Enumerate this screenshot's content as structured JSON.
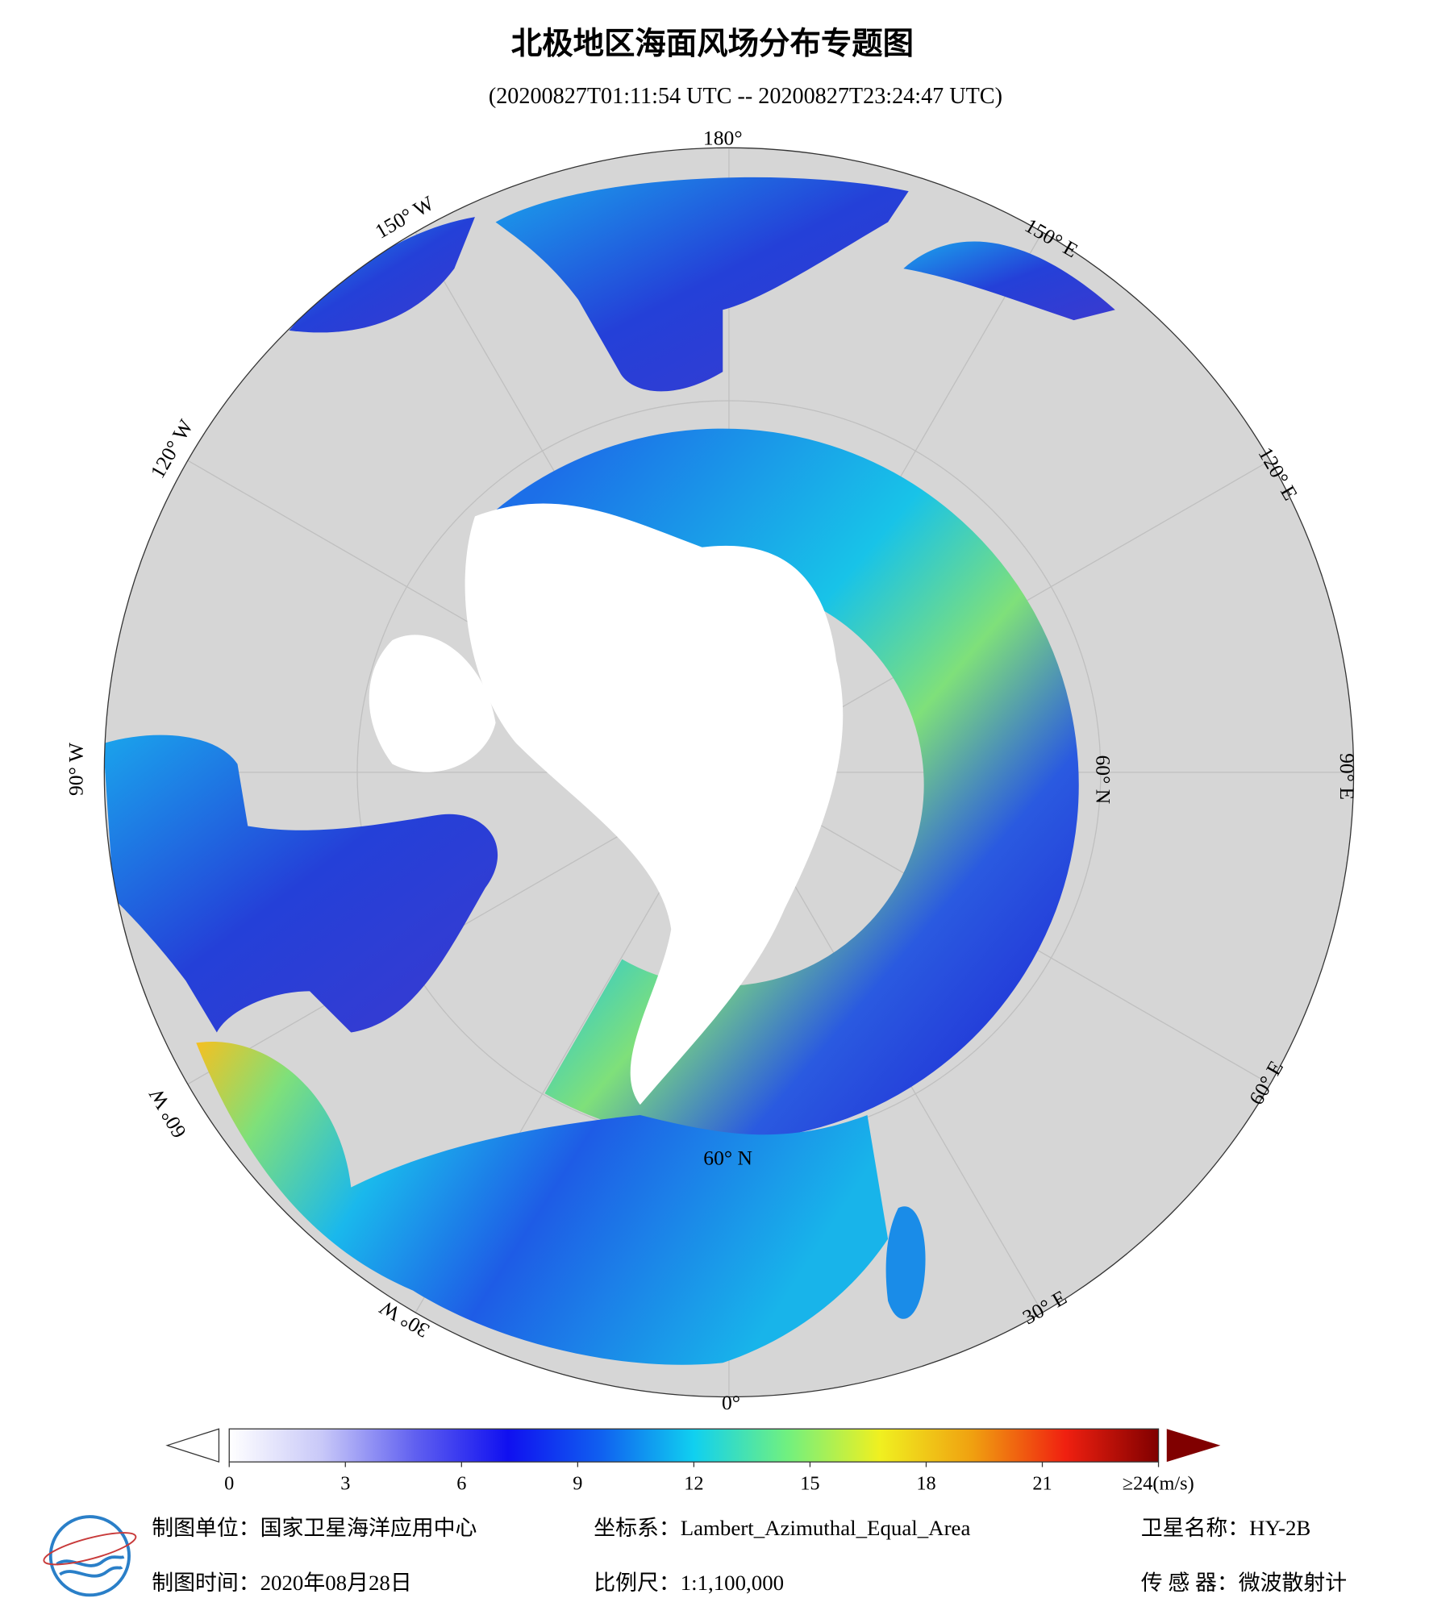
{
  "title": "北极地区海面风场分布专题图",
  "subtitle": "(20200827T01:11:54 UTC -- 20200827T23:24:47 UTC)",
  "graticule": {
    "meridians": [
      "180°",
      "150° E",
      "120° E",
      "90° E",
      "60° E",
      "30° E",
      "0°",
      "30° W",
      "60° W",
      "90° W",
      "120° W",
      "150° W"
    ],
    "parallels": [
      "60° N",
      "60° N"
    ]
  },
  "colorbar": {
    "range": [
      0,
      24
    ],
    "ticks": [
      0,
      3,
      6,
      9,
      12,
      15,
      18,
      21,
      {
        "value": 24,
        "label": "≥24(m/s)"
      }
    ],
    "colors": [
      "#ffffff",
      "#c8c8f8",
      "#6060f0",
      "#1010f0",
      "#1060f0",
      "#10d0f0",
      "#70f080",
      "#f0f020",
      "#f0a010",
      "#f02010",
      "#800000"
    ]
  },
  "footer": {
    "unit": "制图单位：国家卫星海洋应用中心",
    "projection": "坐标系：Lambert_Azimuthal_Equal_Area",
    "satellite": "卫星名称：HY-2B",
    "date": "制图时间：2020年08月28日",
    "scale": "比例尺：1:1,100,000",
    "sensor": "传 感 器：微波散射计"
  }
}
